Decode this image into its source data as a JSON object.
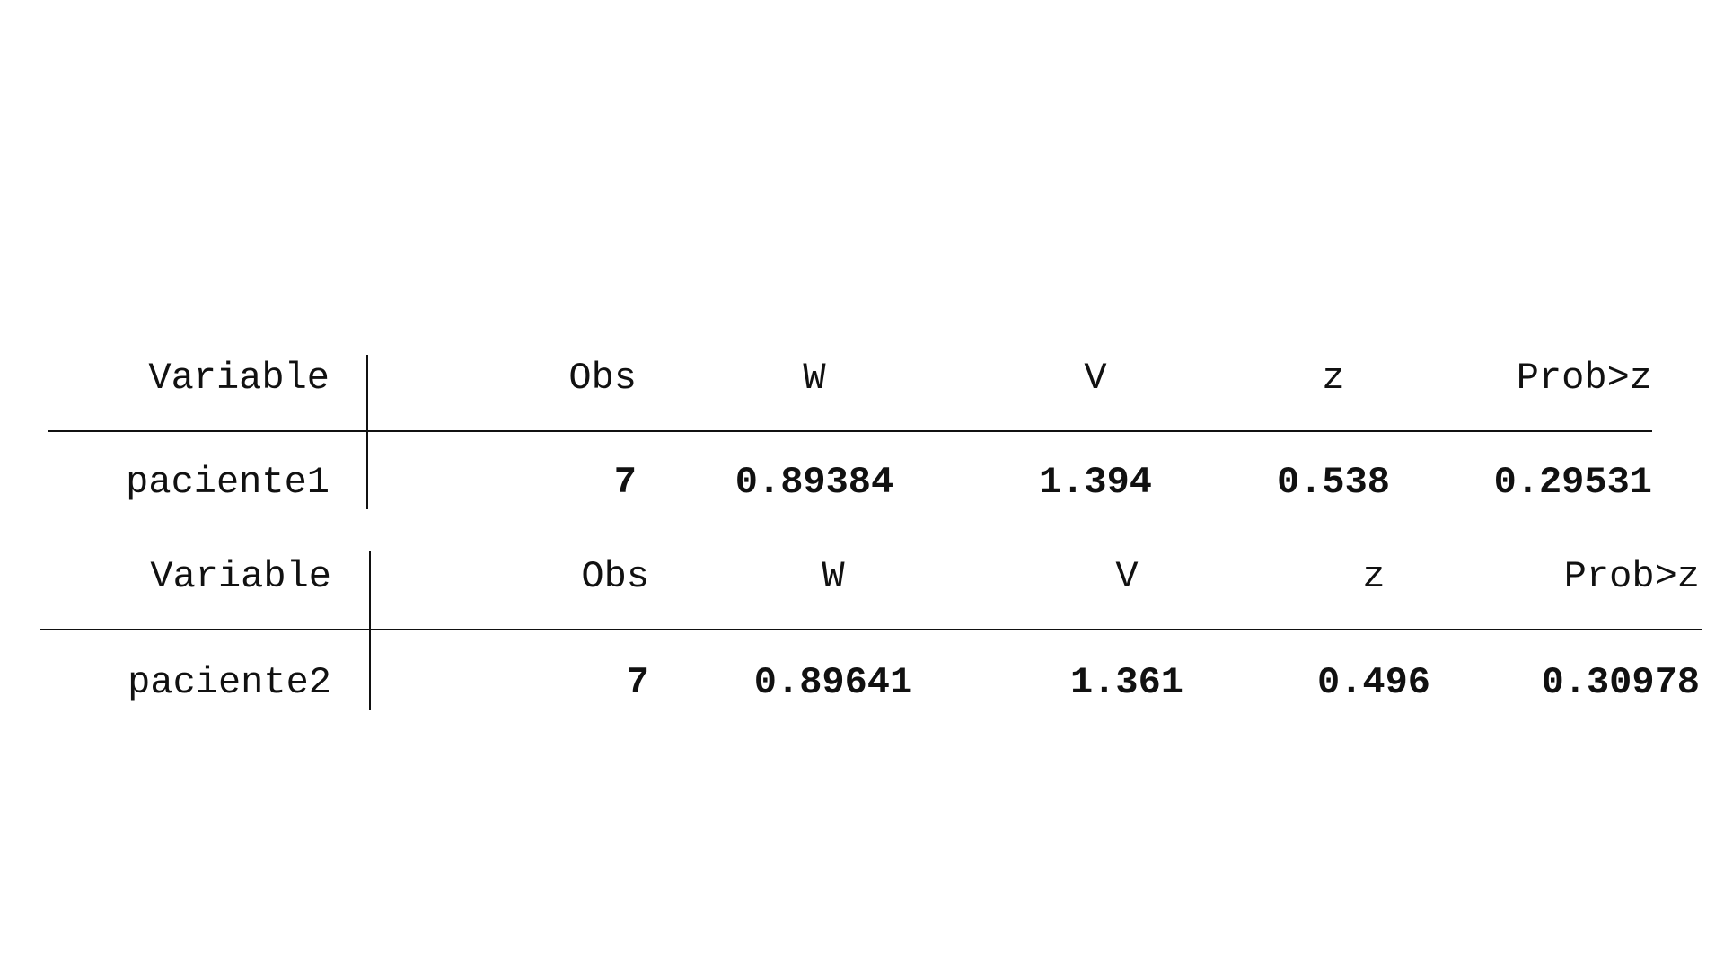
{
  "tables": [
    {
      "headers": {
        "variable": "Variable",
        "obs": "Obs",
        "w": "W",
        "v": "V",
        "z": "z",
        "prob": "Prob>z"
      },
      "row": {
        "variable": "paciente1",
        "obs": "7",
        "w": "0.89384",
        "v": "1.394",
        "z": "0.538",
        "prob": "0.29531"
      }
    },
    {
      "headers": {
        "variable": "Variable",
        "obs": "Obs",
        "w": "W",
        "v": "V",
        "z": "z",
        "prob": "Prob>z"
      },
      "row": {
        "variable": "paciente2",
        "obs": "7",
        "w": "0.89641",
        "v": "1.361",
        "z": "0.496",
        "prob": "0.30978"
      }
    }
  ]
}
